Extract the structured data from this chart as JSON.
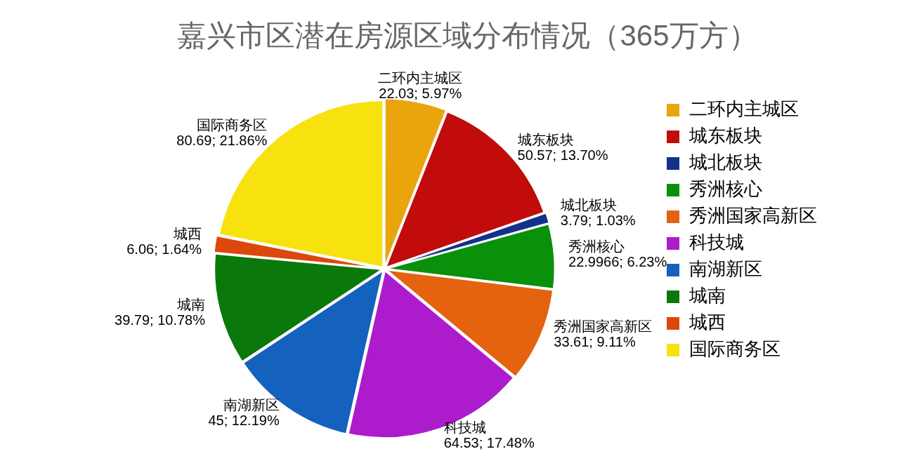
{
  "chart_data": {
    "type": "pie",
    "title": "嘉兴市区潜在房源区域分布情况（365万方）",
    "categories": [
      "二环内主城区",
      "城东板块",
      "城北板块",
      "秀洲核心",
      "秀洲国家高新区",
      "科技城",
      "南湖新区",
      "城南",
      "城西",
      "国际商务区"
    ],
    "values": [
      22.03,
      50.57,
      3.79,
      22.9966,
      33.61,
      64.53,
      45,
      39.79,
      6.06,
      80.69
    ],
    "value_labels": [
      "22.03; 5.97%",
      "50.57; 13.70%",
      "3.79; 1.03%",
      "22.9966; 6.23%",
      "33.61; 9.11%",
      "64.53; 17.48%",
      "45; 12.19%",
      "39.79; 10.78%",
      "6.06; 1.64%",
      "80.69; 21.86%"
    ],
    "colors": [
      "#eaa50c",
      "#c20b0b",
      "#13318a",
      "#0a900a",
      "#e5620f",
      "#ad1ccc",
      "#1561be",
      "#0b780b",
      "#dc480b",
      "#f7e10f"
    ],
    "legend": "right"
  }
}
